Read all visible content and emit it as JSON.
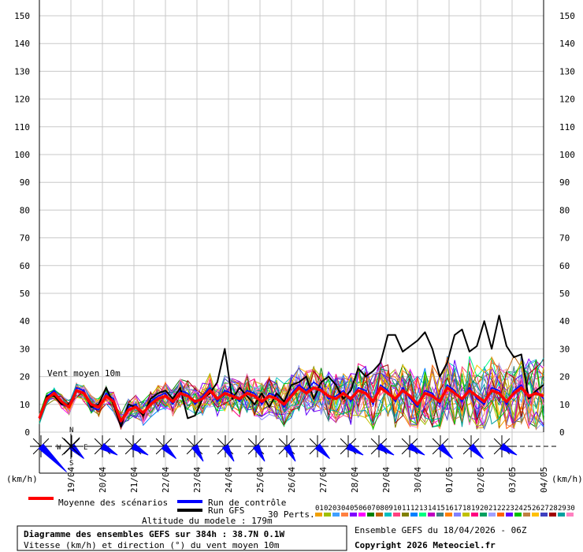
{
  "chart_data": {
    "type": "line",
    "ylim": [
      0,
      150
    ],
    "yticks": [
      0,
      10,
      20,
      30,
      40,
      50,
      60,
      70,
      80,
      90,
      100,
      110,
      120,
      130,
      140,
      150
    ],
    "unit_left": "(km/h)",
    "unit_right": "(km/h)",
    "date_labels": [
      "19/04",
      "20/04",
      "21/04",
      "22/04",
      "23/04",
      "24/04",
      "25/04",
      "26/04",
      "27/04",
      "28/04",
      "29/04",
      "30/04",
      "01/05",
      "02/05",
      "03/05",
      "04/05"
    ],
    "inner_label": "Vent moyen 10m",
    "series": [
      {
        "name": "Moyenne des scénarios",
        "color": "#ff0000",
        "values": [
          5,
          12,
          14,
          11,
          9,
          15,
          14,
          10,
          9,
          13,
          11,
          4,
          8,
          9,
          7,
          10,
          12,
          13,
          11,
          14,
          13,
          11,
          12,
          15,
          12,
          14,
          13,
          12,
          14,
          13,
          11,
          13,
          12,
          10,
          13,
          16,
          14,
          16,
          15,
          13,
          12,
          14,
          12,
          15,
          14,
          11,
          16,
          14,
          12,
          15,
          13,
          10,
          14,
          13,
          11,
          16,
          14,
          12,
          15,
          13,
          11,
          15,
          14,
          11,
          14,
          16,
          13,
          14,
          13
        ]
      },
      {
        "name": "Run de contrôle",
        "color": "#0000ff",
        "values": [
          5,
          13,
          15,
          10,
          9,
          16,
          15,
          9,
          8,
          14,
          12,
          3,
          9,
          10,
          6,
          11,
          13,
          14,
          10,
          15,
          14,
          10,
          13,
          16,
          11,
          15,
          14,
          11,
          15,
          14,
          10,
          14,
          13,
          9,
          14,
          17,
          15,
          18,
          16,
          12,
          13,
          15,
          11,
          16,
          15,
          10,
          17,
          15,
          11,
          16,
          12,
          9,
          15,
          14,
          10,
          17,
          15,
          11,
          16,
          12,
          10,
          16,
          15,
          10,
          15,
          17,
          12,
          15,
          12
        ]
      },
      {
        "name": "Run GFS",
        "color": "#000000",
        "values": [
          5,
          13,
          13,
          10,
          10,
          15,
          14,
          9,
          10,
          16,
          10,
          2,
          10,
          9,
          6,
          12,
          14,
          15,
          12,
          16,
          5,
          6,
          12,
          14,
          18,
          30,
          12,
          16,
          13,
          10,
          14,
          9,
          14,
          11,
          17,
          18,
          20,
          12,
          18,
          20,
          17,
          12,
          15,
          23,
          20,
          22,
          25,
          35,
          35,
          29,
          31,
          33,
          36,
          30,
          20,
          25,
          35,
          37,
          29,
          31,
          40,
          30,
          42,
          31,
          27,
          28,
          12,
          15,
          17
        ]
      }
    ],
    "perturbations": {
      "label": "30 Perts.",
      "count": 30,
      "colors": [
        "#f0a000",
        "#a0c000",
        "#40a0ff",
        "#ff8040",
        "#8000ff",
        "#ff00ff",
        "#008000",
        "#c06000",
        "#00c0c0",
        "#ff4080",
        "#808000",
        "#0080ff",
        "#00ff80",
        "#c000c0",
        "#408080",
        "#ff8000",
        "#8080ff",
        "#c0c000",
        "#ff0080",
        "#00a060",
        "#a0a0ff",
        "#ff6000",
        "#6000ff",
        "#00c000",
        "#c08040",
        "#ffc000",
        "#4040c0",
        "#a00000",
        "#00a0a0",
        "#ff80c0"
      ]
    },
    "wind_directions_deg": [
      315,
      315,
      300,
      300,
      315,
      330,
      330,
      330,
      330,
      315,
      300,
      300,
      300,
      315,
      315,
      300
    ]
  },
  "legend": {
    "mean_label": "Moyenne des scénarios",
    "control_label": "Run de contrôle",
    "gfs_label": "Run GFS",
    "perts_label": "30 Perts.",
    "pert_numbers": [
      "01",
      "02",
      "03",
      "04",
      "05",
      "06",
      "07",
      "08",
      "09",
      "10",
      "11",
      "12",
      "13",
      "14",
      "15",
      "16",
      "17",
      "18",
      "19",
      "20",
      "21",
      "22",
      "23",
      "24",
      "25",
      "26",
      "27",
      "28",
      "29",
      "30"
    ],
    "altitude": "Altitude du modele : 179m"
  },
  "footer": {
    "title": "Diagramme des ensembles GEFS sur 384h : 38.7N 0.1W",
    "subtitle": "Vitesse (km/h) et direction (°) du vent moyen 10m",
    "run_info": "Ensemble GEFS du 18/04/2026 - 06Z",
    "copyright": "Copyright 2026 Meteociel.fr"
  },
  "compass": {
    "n": "N",
    "s": "S",
    "w": "W",
    "e": "E"
  }
}
